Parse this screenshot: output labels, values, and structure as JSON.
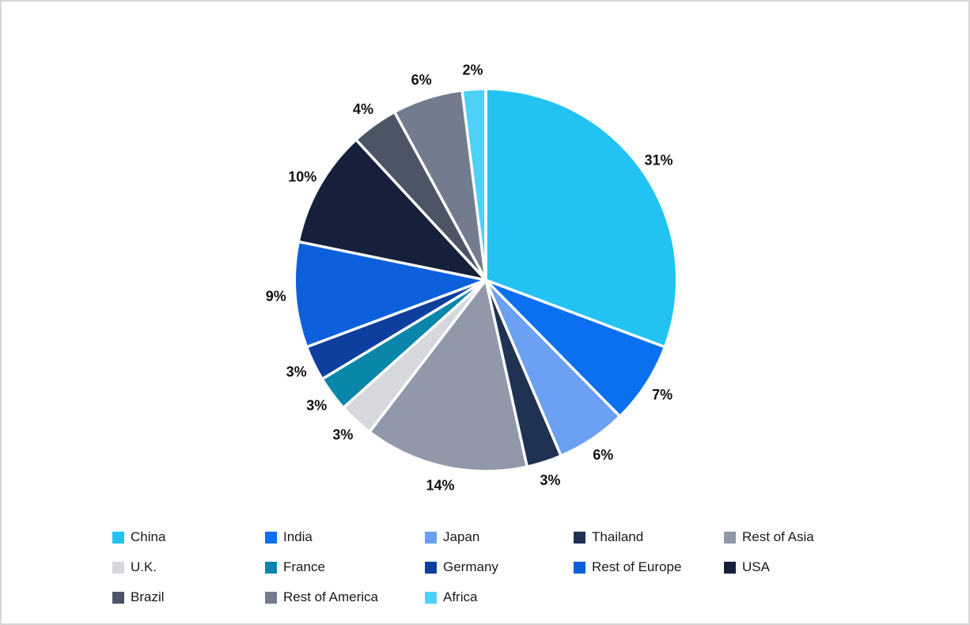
{
  "chart_data": {
    "type": "pie",
    "title": "",
    "unit": "%",
    "start_angle_deg": 0,
    "direction": "clockwise",
    "label_style": "outside-percent",
    "legend_position": "bottom",
    "legend_columns": 5,
    "slices": [
      {
        "label": "China",
        "value": 31,
        "display": "31%",
        "color": "#22C3F2"
      },
      {
        "label": "India",
        "value": 7,
        "display": "7%",
        "color": "#0A70F0"
      },
      {
        "label": "Japan",
        "value": 6,
        "display": "6%",
        "color": "#6BA0F2"
      },
      {
        "label": "Thailand",
        "value": 3,
        "display": "3%",
        "color": "#1F3253"
      },
      {
        "label": "Rest of Asia",
        "value": 14,
        "display": "14%",
        "color": "#9198A9"
      },
      {
        "label": "U.K.",
        "value": 3,
        "display": "3%",
        "color": "#D6D8DD"
      },
      {
        "label": "France",
        "value": 3,
        "display": "3%",
        "color": "#0A86AA"
      },
      {
        "label": "Germany",
        "value": 3,
        "display": "3%",
        "color": "#0E3F9E"
      },
      {
        "label": "Rest of Europe",
        "value": 9,
        "display": "9%",
        "color": "#0D60DC"
      },
      {
        "label": "USA",
        "value": 10,
        "display": "10%",
        "color": "#16203A"
      },
      {
        "label": "Brazil",
        "value": 4,
        "display": "4%",
        "color": "#4B5566"
      },
      {
        "label": "Rest of America",
        "value": 6,
        "display": "6%",
        "color": "#737B8F"
      },
      {
        "label": "Africa",
        "value": 2,
        "display": "2%",
        "color": "#4DD1F7"
      }
    ]
  },
  "styles": {
    "background": "#FFFFFF",
    "border_color": "#D5D5D5",
    "separator_color": "#FFFFFF",
    "label_color": "#111111",
    "legend_text_color": "#1A1A1A"
  }
}
